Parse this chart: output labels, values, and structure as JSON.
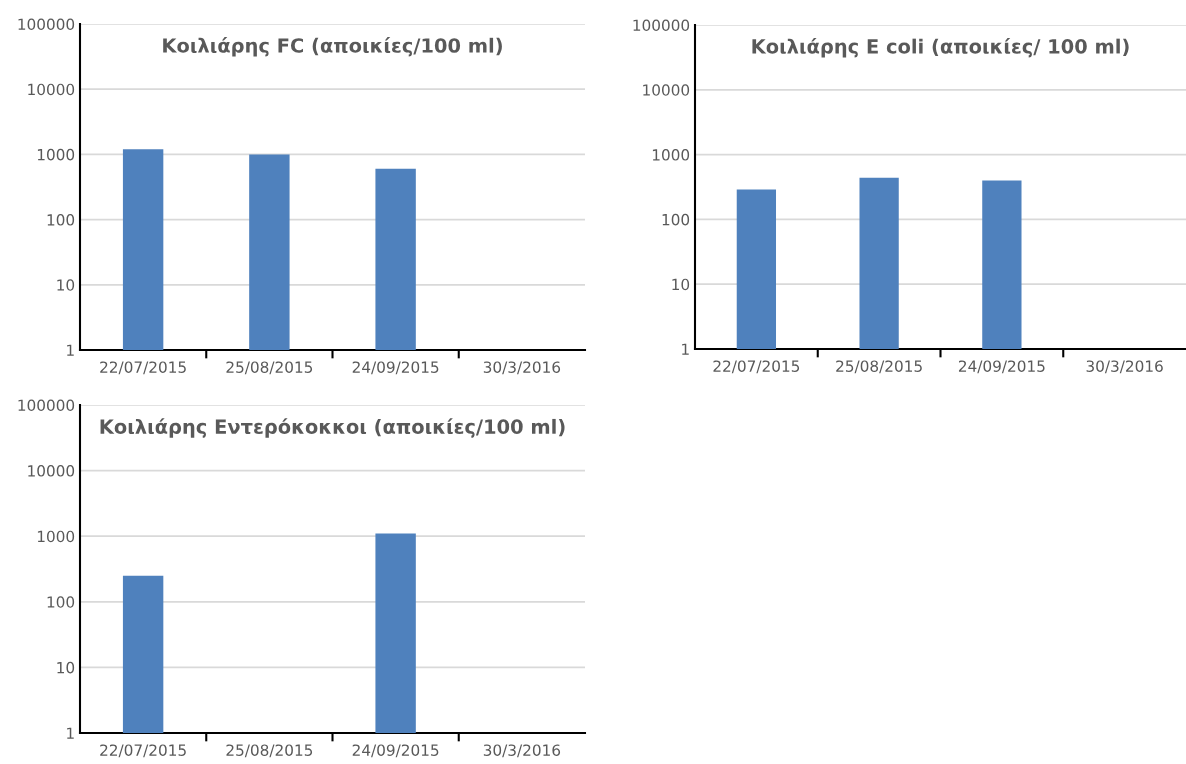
{
  "chart_data": [
    {
      "type": "bar",
      "title": "Κοιλιάρης FC (αποικίες/100 ml)",
      "categories": [
        "22/07/2015",
        "25/08/2015",
        "24/09/2015",
        "30/3/2016"
      ],
      "values": [
        1200,
        1000,
        600,
        null
      ],
      "color": "#4f81bd",
      "log": true,
      "ylim": [
        1,
        100000
      ],
      "yticks": [
        1,
        10,
        100,
        1000,
        10000,
        100000
      ],
      "grid": "y"
    },
    {
      "type": "bar",
      "title": "Κοιλιάρης E coli (αποικίες/ 100 ml)",
      "categories": [
        "22/07/2015",
        "25/08/2015",
        "24/09/2015",
        "30/3/2016"
      ],
      "values": [
        290,
        440,
        400,
        null
      ],
      "color": "#4f81bd",
      "log": true,
      "ylim": [
        1,
        100000
      ],
      "yticks": [
        1,
        10,
        100,
        1000,
        10000,
        100000
      ],
      "grid": "y"
    },
    {
      "type": "bar",
      "title": "Κοιλιάρης Εντερόκοκκοι (αποικίες/100 ml)",
      "categories": [
        "22/07/2015",
        "25/08/2015",
        "24/09/2015",
        "30/3/2016"
      ],
      "values": [
        250,
        null,
        1100,
        null
      ],
      "color": "#4f81bd",
      "log": true,
      "ylim": [
        1,
        100000
      ],
      "yticks": [
        1,
        10,
        100,
        1000,
        10000,
        100000
      ],
      "grid": "y"
    }
  ]
}
